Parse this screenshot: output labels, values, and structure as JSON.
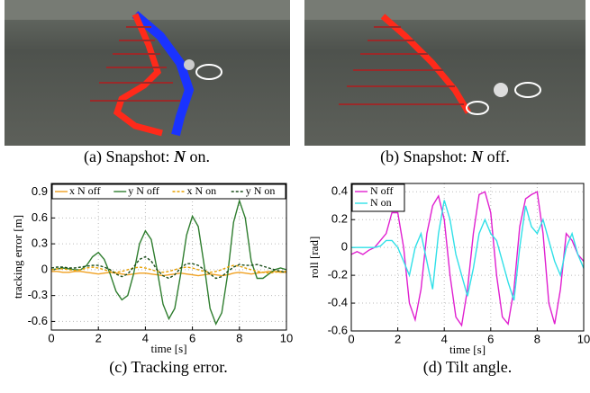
{
  "captions": [
    [
      "(a) Snapshot: ",
      "N",
      " on."
    ],
    [
      "(b) Snapshot: ",
      "N",
      " off."
    ],
    [
      "(c) Tracking error."
    ],
    [
      "(d) Tilt angle."
    ]
  ],
  "chart_data": [
    {
      "type": "line",
      "xlabel": "time [s]",
      "ylabel": "tracking error [m]",
      "legend": "top",
      "grid": true,
      "xlim": [
        0,
        10
      ],
      "xticks": [
        0,
        2,
        4,
        6,
        8,
        10
      ],
      "ylim": [
        -0.7,
        1.0
      ],
      "yticks": [
        -0.6,
        -0.3,
        0,
        0.3,
        0.6,
        0.9
      ],
      "x": [
        0,
        0.25,
        0.5,
        0.75,
        1,
        1.25,
        1.5,
        1.75,
        2,
        2.25,
        2.5,
        2.75,
        3,
        3.25,
        3.5,
        3.75,
        4,
        4.25,
        4.5,
        4.75,
        5,
        5.25,
        5.5,
        5.75,
        6,
        6.25,
        6.5,
        6.75,
        7,
        7.25,
        7.5,
        7.75,
        8,
        8.25,
        8.5,
        8.75,
        9,
        9.25,
        9.5,
        9.75,
        10
      ],
      "series": [
        {
          "name": "x N off",
          "color": "#f0a020",
          "style": "solid",
          "values": [
            -0.02,
            -0.02,
            -0.03,
            -0.03,
            -0.02,
            -0.02,
            -0.03,
            -0.04,
            -0.05,
            -0.04,
            -0.03,
            -0.04,
            -0.05,
            -0.06,
            -0.05,
            -0.04,
            -0.04,
            -0.05,
            -0.06,
            -0.07,
            -0.06,
            -0.05,
            -0.04,
            -0.05,
            -0.06,
            -0.07,
            -0.06,
            -0.05,
            -0.06,
            -0.07,
            -0.06,
            -0.04,
            -0.03,
            -0.04,
            -0.05,
            -0.04,
            -0.03,
            -0.02,
            -0.02,
            -0.03,
            -0.03
          ]
        },
        {
          "name": "y N off",
          "color": "#2e7d2e",
          "style": "solid",
          "values": [
            0,
            0.01,
            0.02,
            0.01,
            0,
            0,
            0.05,
            0.15,
            0.2,
            0.12,
            -0.05,
            -0.25,
            -0.35,
            -0.3,
            -0.05,
            0.3,
            0.45,
            0.35,
            0,
            -0.4,
            -0.57,
            -0.45,
            -0.05,
            0.4,
            0.62,
            0.5,
            0.05,
            -0.45,
            -0.63,
            -0.5,
            -0.05,
            0.55,
            0.8,
            0.6,
            0.1,
            -0.1,
            -0.1,
            -0.05,
            0,
            0.02,
            0
          ]
        },
        {
          "name": "x N on",
          "color": "#e8a000",
          "style": "dashed",
          "values": [
            0,
            0.01,
            0.01,
            0,
            -0.01,
            0,
            0.02,
            0.03,
            0.02,
            0,
            -0.02,
            -0.03,
            -0.02,
            0,
            0.02,
            0.03,
            0.02,
            0,
            -0.02,
            -0.03,
            -0.02,
            0,
            0.02,
            0.03,
            0.02,
            0,
            -0.02,
            -0.03,
            -0.02,
            0,
            0.03,
            0.05,
            0.04,
            0.02,
            0,
            -0.02,
            -0.03,
            -0.04,
            -0.03,
            -0.02,
            -0.02
          ]
        },
        {
          "name": "y N on",
          "color": "#1a4d1a",
          "style": "dashed",
          "values": [
            0.02,
            0.03,
            0.03,
            0.02,
            0.02,
            0.03,
            0.04,
            0.05,
            0.05,
            0.03,
            0,
            -0.05,
            -0.08,
            -0.05,
            0.03,
            0.12,
            0.15,
            0.1,
            0,
            -0.07,
            -0.1,
            -0.06,
            0.02,
            0.07,
            0.07,
            0.05,
            0,
            -0.05,
            -0.1,
            -0.08,
            -0.02,
            0.03,
            0.06,
            0.05,
            0.05,
            0.06,
            0.04,
            0.02,
            0,
            -0.02,
            -0.03
          ]
        }
      ]
    },
    {
      "type": "line",
      "xlabel": "time [s]",
      "ylabel": "roll [rad]",
      "legend": "upper left",
      "grid": true,
      "xlim": [
        0,
        10
      ],
      "xticks": [
        0,
        2,
        4,
        6,
        8,
        10
      ],
      "ylim": [
        -0.6,
        0.46
      ],
      "yticks": [
        -0.6,
        -0.4,
        -0.2,
        0,
        0.2,
        0.4
      ],
      "x": [
        0,
        0.25,
        0.5,
        0.75,
        1,
        1.25,
        1.5,
        1.75,
        2,
        2.25,
        2.5,
        2.75,
        3,
        3.25,
        3.5,
        3.75,
        4,
        4.25,
        4.5,
        4.75,
        5,
        5.25,
        5.5,
        5.75,
        6,
        6.25,
        6.5,
        6.75,
        7,
        7.25,
        7.5,
        7.75,
        8,
        8.25,
        8.5,
        8.75,
        9,
        9.25,
        9.5,
        9.75,
        10
      ],
      "series": [
        {
          "name": "N off",
          "color": "#e020d0",
          "style": "solid",
          "values": [
            -0.05,
            -0.03,
            -0.05,
            -0.02,
            0,
            0.05,
            0.1,
            0.25,
            0.25,
            0,
            -0.4,
            -0.52,
            -0.3,
            0.1,
            0.3,
            0.37,
            0.2,
            -0.2,
            -0.5,
            -0.56,
            -0.3,
            0.1,
            0.38,
            0.4,
            0.25,
            -0.2,
            -0.5,
            -0.55,
            -0.3,
            0.15,
            0.35,
            0.38,
            0.4,
            0.1,
            -0.4,
            -0.55,
            -0.3,
            0.1,
            0.05,
            -0.05,
            -0.1
          ]
        },
        {
          "name": "N on",
          "color": "#30e0e8",
          "style": "solid",
          "values": [
            0,
            0,
            0,
            0,
            0,
            0.01,
            0.05,
            0.05,
            0,
            -0.1,
            -0.2,
            0,
            0.1,
            -0.1,
            -0.3,
            0.1,
            0.34,
            0.2,
            -0.05,
            -0.2,
            -0.35,
            -0.15,
            0.1,
            0.2,
            0.1,
            0.05,
            -0.1,
            -0.25,
            -0.38,
            0,
            0.3,
            0.15,
            0.1,
            0.2,
            0.05,
            -0.1,
            -0.2,
            0,
            0.1,
            -0.05,
            -0.15
          ]
        }
      ]
    }
  ]
}
